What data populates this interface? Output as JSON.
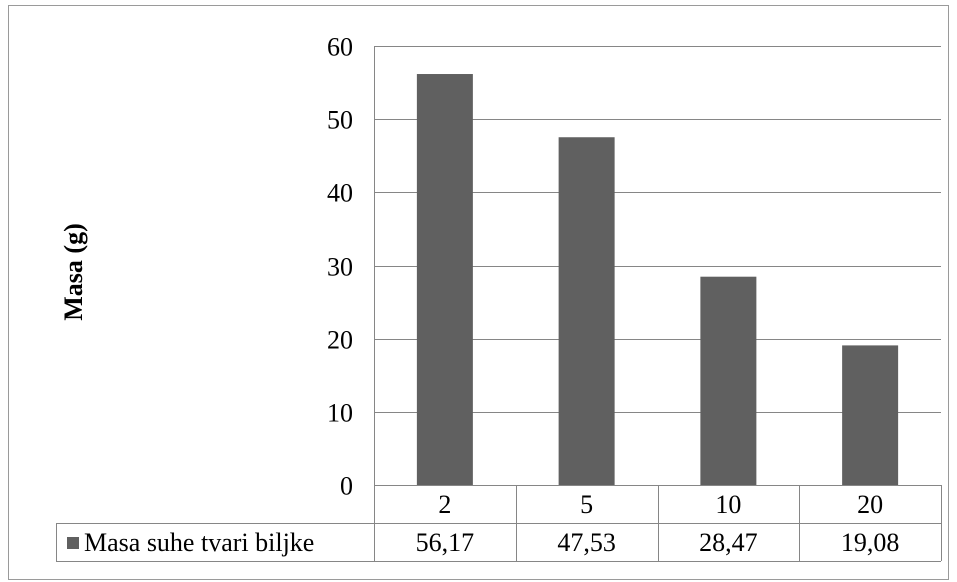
{
  "chart_data": {
    "type": "bar",
    "categories": [
      "2",
      "5",
      "10",
      "20"
    ],
    "series": [
      {
        "name": "Masa suhe tvari biljke",
        "values": [
          56.17,
          47.53,
          28.47,
          19.08
        ]
      }
    ],
    "data_table_values": [
      "56,17",
      "47,53",
      "28,47",
      "19,08"
    ],
    "ylabel": "Masa (g)",
    "xlabel": "",
    "title": "",
    "ylim": [
      0,
      60
    ],
    "yticks": [
      0,
      10,
      20,
      30,
      40,
      50,
      60
    ],
    "ytick_labels": [
      "0",
      "10",
      "20",
      "30",
      "40",
      "50",
      "60"
    ],
    "grid": true,
    "legend": "data-table",
    "bar_color": "#606060",
    "grid_color": "#868686"
  }
}
